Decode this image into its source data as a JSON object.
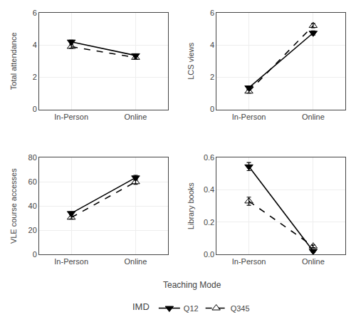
{
  "chart_data": [
    {
      "type": "line",
      "ylabel": "Total attendance",
      "categories": [
        "In-Person",
        "Online"
      ],
      "ylim": [
        0,
        6
      ],
      "yticks": [
        0,
        2,
        4,
        6
      ],
      "grid": true,
      "series": [
        {
          "name": "Q12",
          "color": "black",
          "marker": "triangle-down",
          "line_style": "solid",
          "values": [
            4.2,
            3.35
          ],
          "errors": [
            0.1,
            0.08
          ]
        },
        {
          "name": "Q345",
          "color": "black",
          "marker": "triangle-up-open",
          "line_style": "dashed",
          "values": [
            3.9,
            3.22
          ],
          "errors": [
            0.1,
            0.08
          ]
        }
      ]
    },
    {
      "type": "line",
      "ylabel": "LCS views",
      "categories": [
        "In-Person",
        "Online"
      ],
      "ylim": [
        0,
        6
      ],
      "yticks": [
        0,
        2,
        4,
        6
      ],
      "grid": true,
      "series": [
        {
          "name": "Q12",
          "color": "black",
          "marker": "triangle-down",
          "line_style": "solid",
          "values": [
            1.35,
            4.75
          ],
          "errors": [
            0.1,
            0.13
          ]
        },
        {
          "name": "Q345",
          "color": "black",
          "marker": "triangle-up-open",
          "line_style": "dashed",
          "values": [
            1.12,
            5.2
          ],
          "errors": [
            0.1,
            0.13
          ]
        }
      ]
    },
    {
      "type": "line",
      "ylabel": "VLE course accesses",
      "categories": [
        "In-Person",
        "Online"
      ],
      "ylim": [
        0,
        80
      ],
      "yticks": [
        0,
        20,
        40,
        60,
        80
      ],
      "grid": true,
      "series": [
        {
          "name": "Q12",
          "color": "black",
          "marker": "triangle-down",
          "line_style": "solid",
          "values": [
            34.0,
            63.5
          ],
          "errors": [
            1.2,
            2.0
          ]
        },
        {
          "name": "Q345",
          "color": "black",
          "marker": "triangle-up-open",
          "line_style": "dashed",
          "values": [
            30.5,
            60.0
          ],
          "errors": [
            1.2,
            2.0
          ]
        }
      ]
    },
    {
      "type": "line",
      "ylabel": "Library books",
      "categories": [
        "In-Person",
        "Online"
      ],
      "ylim": [
        0,
        0.6
      ],
      "yticks": [
        {
          "value": 0,
          "label": "0.0"
        },
        0.2,
        0.4,
        0.6
      ],
      "grid": true,
      "series": [
        {
          "name": "Q12",
          "color": "black",
          "marker": "triangle-down",
          "line_style": "solid",
          "values": [
            0.545,
            0.02
          ],
          "errors": [
            0.025,
            0.008
          ]
        },
        {
          "name": "Q345",
          "color": "black",
          "marker": "triangle-up-open",
          "line_style": "dashed",
          "values": [
            0.33,
            0.05
          ],
          "errors": [
            0.025,
            0.008
          ]
        }
      ]
    }
  ],
  "xlabel": "Teaching Mode",
  "legend_title": "IMD",
  "legend": "bottom"
}
